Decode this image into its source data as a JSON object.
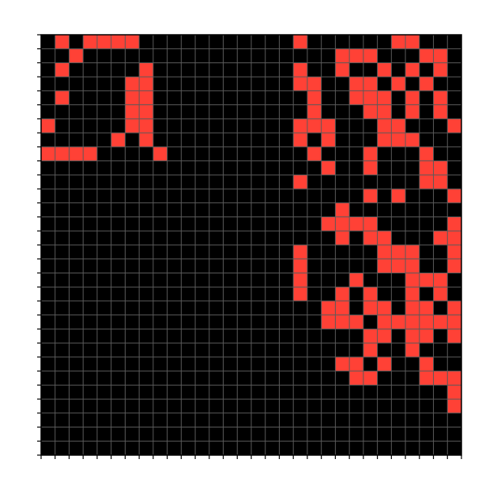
{
  "chart_data": {
    "type": "heatmap",
    "title": "",
    "xlabel": "",
    "ylabel": "",
    "rows": 30,
    "cols": 30,
    "grid": true,
    "tick_labels": false,
    "colors": {
      "background": "#000000",
      "on": "#ff4136",
      "grid": "#5a5a5a",
      "axis": "#000000",
      "page": "#ffffff"
    },
    "cells": [
      "010111100000000000100000011000",
      "001000000000000000000111000110",
      "010000010000000000100100101010",
      "000000110000000000110011010100",
      "010000110000000000010011101010",
      "000000110000000000010001101010",
      "100000110000000000111000110001",
      "000001010000000000101000111000",
      "111100001000000000010001000100",
      "000000000000000000001001000110",
      "000000000000000000100000000110",
      "000000000000000000000001010001",
      "000000000000000000000100000000",
      "000000000000000000001111000001",
      "000000000000000000000101100011",
      "000000000000000000100000111001",
      "000000000000000000100000111001",
      "000000000000000000100010001110",
      "000000000000000000100101001010",
      "000000000000000000001101101101",
      "000000000000000000001110111111",
      "000000000000000000000001101101",
      "000000000000000000000001001000",
      "000000000000000000000110100100",
      "000000000000000000000011000111",
      "000000000000000000000000000001",
      "000000000000000000000000000001",
      "000000000000000000000000000000",
      "000000000000000000000000000000",
      "000000000000000000000000000000"
    ]
  }
}
